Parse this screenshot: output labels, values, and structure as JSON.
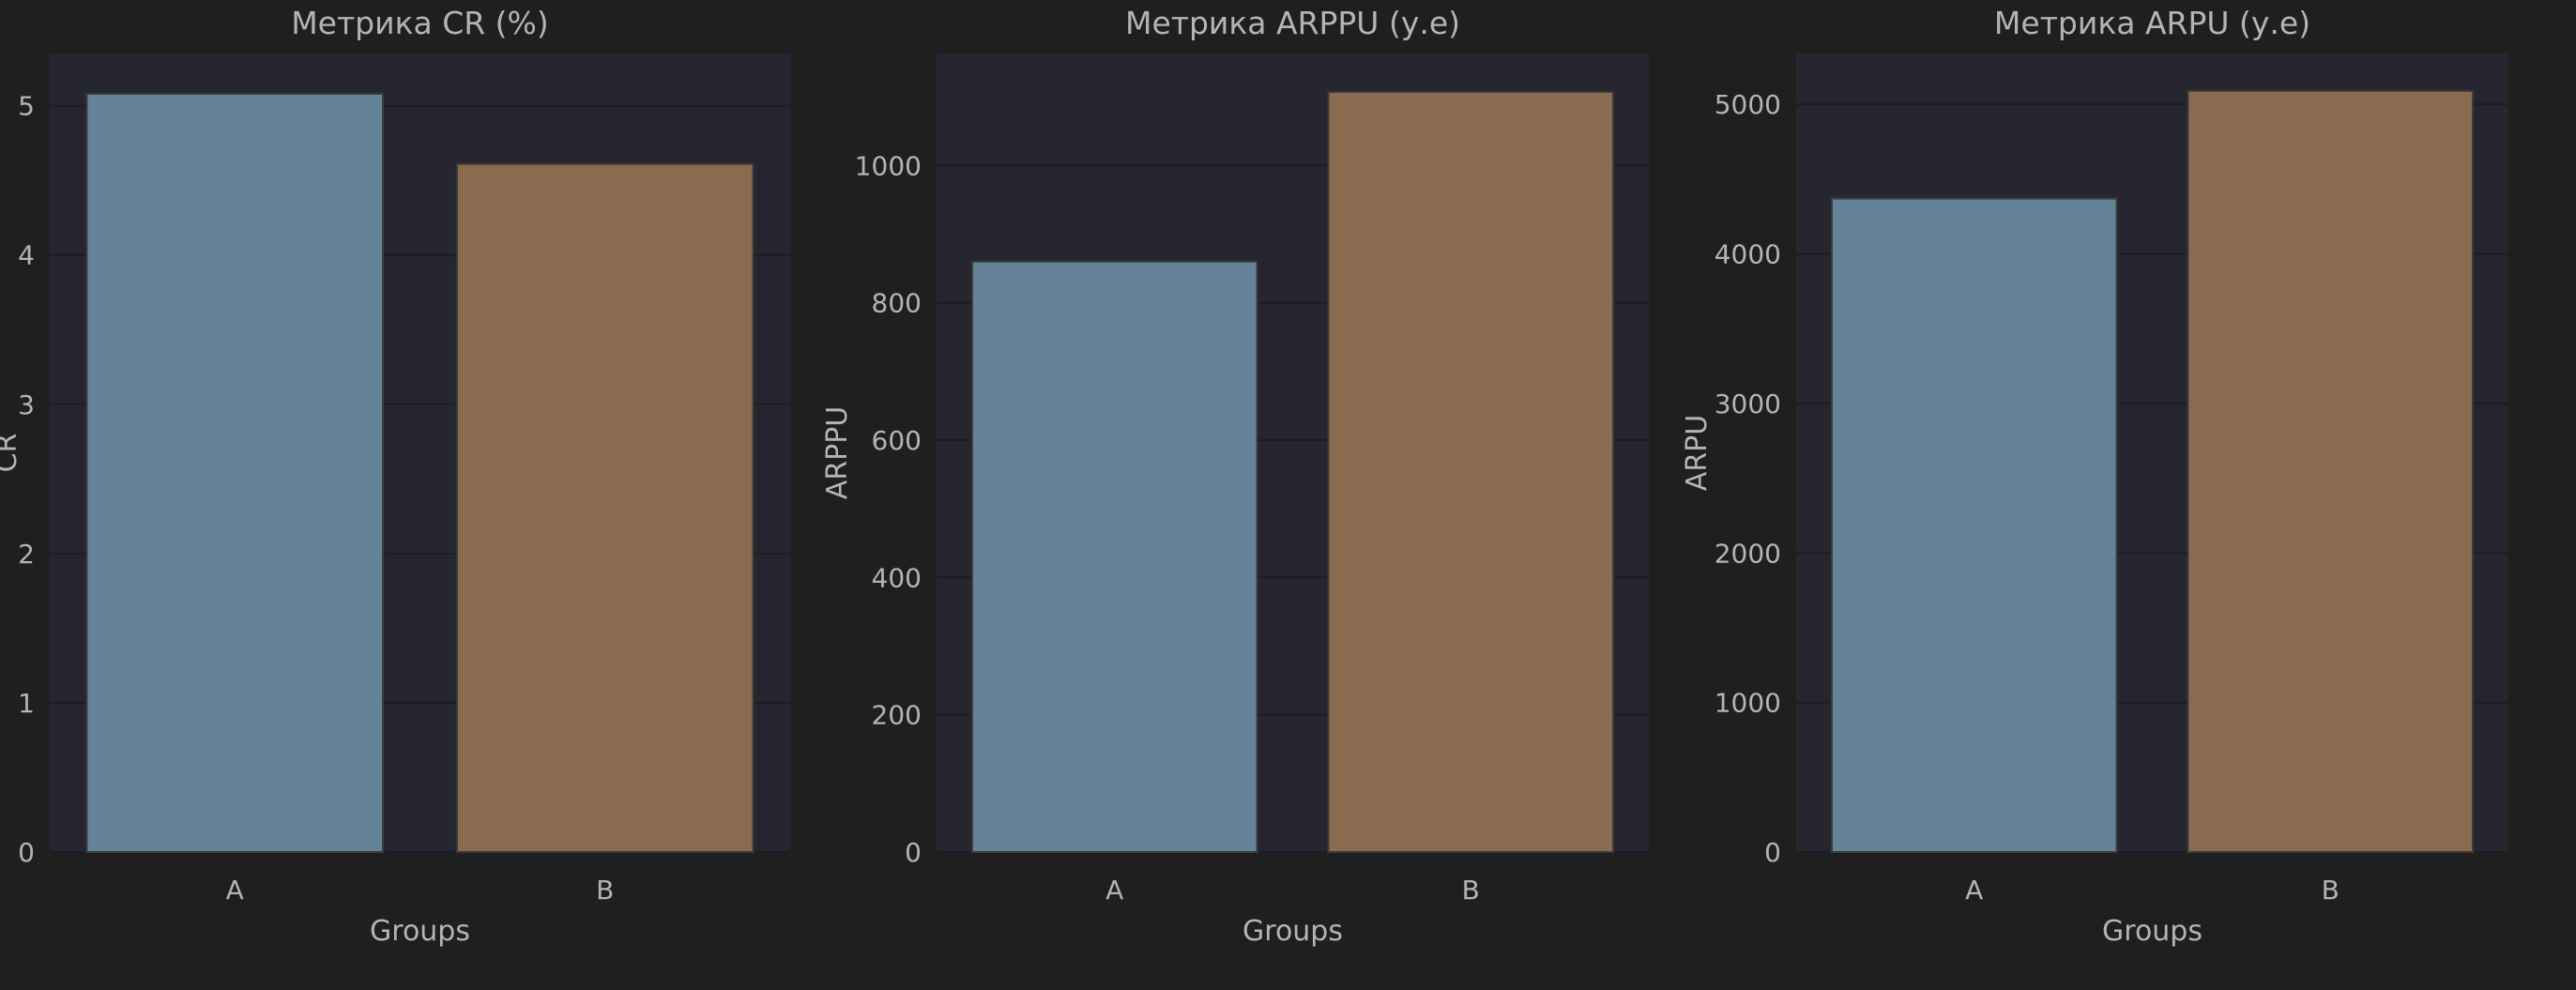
{
  "colors": {
    "page_background": "#1f1f20",
    "plot_background": "#252630",
    "grid": "#1c1d22",
    "text": "#b4b4b4",
    "group_a": "#648396",
    "group_b": "#8a6b4f",
    "bar_edge": "#3a3a3a"
  },
  "chart_data": [
    {
      "type": "bar",
      "title": "Метрика CR (%)",
      "xlabel": "Groups",
      "ylabel": "CR",
      "categories": [
        "A",
        "B"
      ],
      "values": [
        5.08,
        4.61
      ],
      "ylim": [
        0,
        5.35
      ],
      "yticks": [
        0,
        1,
        2,
        3,
        4,
        5
      ],
      "grid": true
    },
    {
      "type": "bar",
      "title": "Метрика ARPPU (у.е)",
      "xlabel": "Groups",
      "ylabel": "ARPPU",
      "categories": [
        "A",
        "B"
      ],
      "values": [
        860,
        1107
      ],
      "ylim": [
        0,
        1163
      ],
      "yticks": [
        0,
        200,
        400,
        600,
        800,
        1000
      ],
      "grid": true
    },
    {
      "type": "bar",
      "title": "Метрика ARPU (у.е)",
      "xlabel": "Groups",
      "ylabel": "ARPU",
      "categories": [
        "A",
        "B"
      ],
      "values": [
        4370,
        5090
      ],
      "ylim": [
        0,
        5340
      ],
      "yticks": [
        0,
        1000,
        2000,
        3000,
        4000,
        5000
      ],
      "grid": true
    }
  ]
}
